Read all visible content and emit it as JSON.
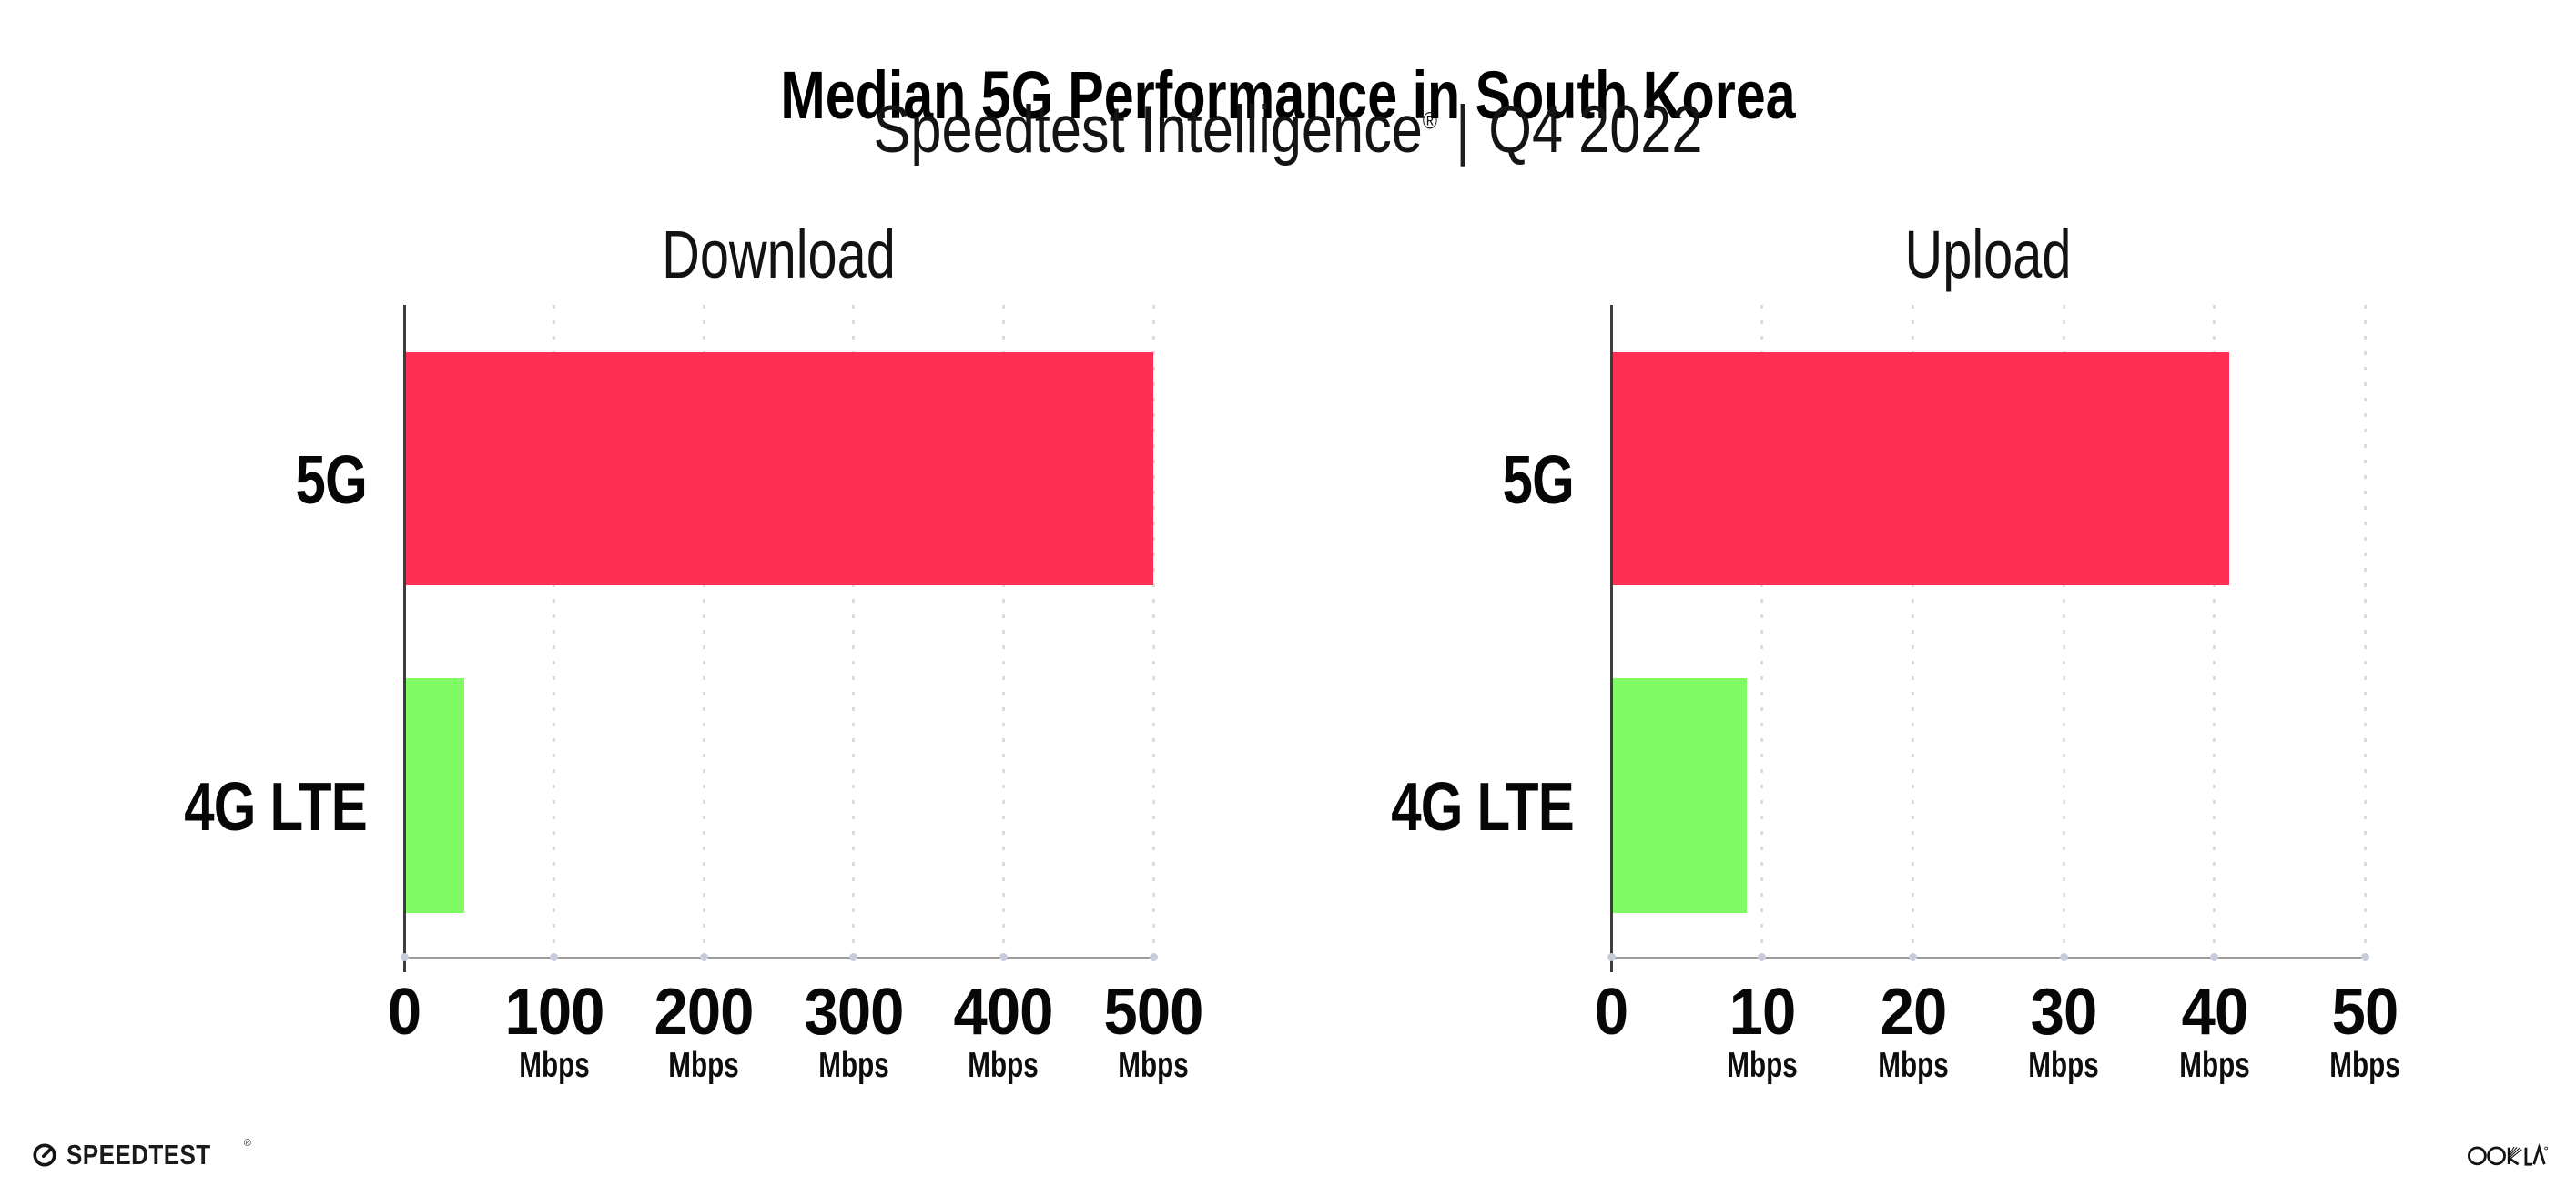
{
  "header": {
    "title": "Median 5G Performance in South Korea",
    "subtitle_product": "Speedtest Intelligence",
    "subtitle_reg": "®",
    "subtitle_separator": "|",
    "subtitle_period": "Q4 2022"
  },
  "footer": {
    "speedtest_label": "SPEEDTEST",
    "speedtest_reg": "®",
    "speedtest_icon": "gauge-icon",
    "ookla_label": "OOKLA"
  },
  "chart_data": [
    {
      "type": "bar",
      "orientation": "horizontal",
      "title": "Download",
      "categories": [
        "5G",
        "4G LTE"
      ],
      "values": [
        500,
        40
      ],
      "value_unit": "Mbps",
      "xlim": [
        0,
        500
      ],
      "xticks": [
        0,
        100,
        200,
        300,
        400,
        500
      ],
      "xtick_unit_label": "Mbps",
      "grid": "dotted vertical gridlines at each tick",
      "legend": "none",
      "bar_colors": {
        "5G": "#ff2e55",
        "4G LTE": "#80fb64"
      }
    },
    {
      "type": "bar",
      "orientation": "horizontal",
      "title": "Upload",
      "categories": [
        "5G",
        "4G LTE"
      ],
      "values": [
        41,
        9
      ],
      "value_unit": "Mbps",
      "xlim": [
        0,
        50
      ],
      "xticks": [
        0,
        10,
        20,
        30,
        40,
        50
      ],
      "xtick_unit_label": "Mbps",
      "grid": "dotted vertical gridlines at each tick",
      "legend": "none",
      "bar_colors": {
        "5G": "#ff2e55",
        "4G LTE": "#80fb64"
      }
    }
  ]
}
